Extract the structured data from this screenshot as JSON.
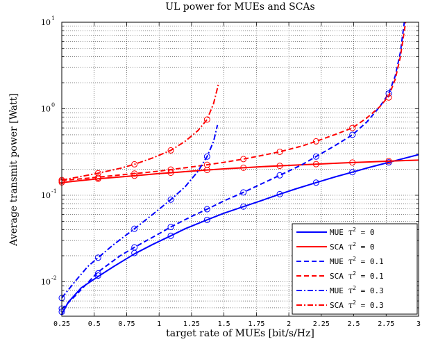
{
  "chart_data": {
    "type": "line",
    "title": "UL power for MUEs and SCAs",
    "xlabel": "target rate of MUEs [bit/s/Hz]",
    "ylabel": "Average transmit power [Watt]",
    "xlim": [
      0.25,
      3
    ],
    "ylim": [
      0.004,
      10
    ],
    "yscale": "log",
    "grid": true,
    "legend_position": "bottom-right",
    "x_ticks": [
      "0.25",
      "0.5",
      "0.75",
      "1",
      "1.25",
      "1.5",
      "1.75",
      "2",
      "2.25",
      "2.5",
      "2.75",
      "3"
    ],
    "x_tick_values": [
      0.25,
      0.5,
      0.75,
      1,
      1.25,
      1.5,
      1.75,
      2,
      2.25,
      2.5,
      2.75,
      3
    ],
    "y_ticks": [
      {
        "value": 0.01,
        "base": "10",
        "exp": "-2"
      },
      {
        "value": 0.1,
        "base": "10",
        "exp": "-1"
      },
      {
        "value": 1,
        "base": "10",
        "exp": "0"
      },
      {
        "value": 10,
        "base": "10",
        "exp": "1"
      }
    ],
    "series": [
      {
        "name": "MUE τ² = 0",
        "legend_prefix": "MUE",
        "legend_value": "= 0",
        "color": "#0000ff",
        "dash": "solid",
        "x": [
          0.25,
          0.3,
          0.4,
          0.53,
          0.65,
          0.81,
          0.95,
          1.09,
          1.2,
          1.37,
          1.5,
          1.65,
          1.8,
          1.93,
          2.05,
          2.21,
          2.35,
          2.49,
          2.62,
          2.77,
          2.9,
          3.0
        ],
        "y": [
          0.0042,
          0.0058,
          0.0085,
          0.0115,
          0.015,
          0.021,
          0.027,
          0.034,
          0.041,
          0.052,
          0.062,
          0.074,
          0.088,
          0.103,
          0.118,
          0.14,
          0.162,
          0.185,
          0.21,
          0.24,
          0.27,
          0.295
        ],
        "markers_x": [
          0.25,
          0.53,
          0.81,
          1.09,
          1.37,
          1.65,
          1.93,
          2.21,
          2.49,
          2.77
        ],
        "markers_y": [
          0.0045,
          0.0118,
          0.0215,
          0.034,
          0.052,
          0.074,
          0.103,
          0.14,
          0.185,
          0.24
        ]
      },
      {
        "name": "SCA τ² = 0",
        "legend_prefix": "SCA",
        "legend_value": "= 0",
        "color": "#ff0000",
        "dash": "solid",
        "x": [
          0.25,
          0.4,
          0.53,
          0.7,
          0.81,
          1.0,
          1.09,
          1.25,
          1.37,
          1.5,
          1.65,
          1.8,
          1.93,
          2.1,
          2.21,
          2.35,
          2.49,
          2.62,
          2.77,
          2.9,
          3.0
        ],
        "y": [
          0.14,
          0.148,
          0.155,
          0.163,
          0.168,
          0.178,
          0.182,
          0.19,
          0.196,
          0.202,
          0.208,
          0.214,
          0.219,
          0.225,
          0.229,
          0.234,
          0.239,
          0.243,
          0.248,
          0.252,
          0.255
        ],
        "markers_x": [
          0.25,
          0.53,
          0.81,
          1.09,
          1.37,
          1.65,
          1.93,
          2.21,
          2.49,
          2.77
        ],
        "markers_y": [
          0.141,
          0.155,
          0.168,
          0.182,
          0.196,
          0.208,
          0.219,
          0.229,
          0.239,
          0.248
        ]
      },
      {
        "name": "MUE τ² = 0.1",
        "legend_prefix": "MUE",
        "legend_value": "= 0.1",
        "color": "#0000ff",
        "dash": "dashed",
        "x": [
          0.25,
          0.35,
          0.53,
          0.7,
          0.81,
          1.0,
          1.09,
          1.25,
          1.37,
          1.5,
          1.65,
          1.8,
          1.93,
          2.1,
          2.21,
          2.35,
          2.49,
          2.6,
          2.7,
          2.77,
          2.82,
          2.86,
          2.89
        ],
        "y": [
          0.0048,
          0.0068,
          0.013,
          0.02,
          0.025,
          0.036,
          0.043,
          0.057,
          0.069,
          0.086,
          0.108,
          0.138,
          0.17,
          0.225,
          0.28,
          0.37,
          0.5,
          0.7,
          1.05,
          1.5,
          2.4,
          4.5,
          10.0
        ],
        "markers_x": [
          0.25,
          0.53,
          0.81,
          1.09,
          1.37,
          1.65,
          1.93,
          2.21,
          2.49,
          2.77
        ],
        "markers_y": [
          0.0049,
          0.0125,
          0.025,
          0.043,
          0.069,
          0.108,
          0.17,
          0.28,
          0.5,
          1.5
        ]
      },
      {
        "name": "SCA τ² = 0.1",
        "legend_prefix": "SCA",
        "legend_value": "= 0.1",
        "color": "#ff0000",
        "dash": "dashed",
        "x": [
          0.25,
          0.4,
          0.53,
          0.7,
          0.81,
          1.0,
          1.09,
          1.25,
          1.37,
          1.5,
          1.65,
          1.8,
          1.93,
          2.1,
          2.21,
          2.35,
          2.49,
          2.6,
          2.7,
          2.77,
          2.82,
          2.86,
          2.9
        ],
        "y": [
          0.148,
          0.155,
          0.162,
          0.172,
          0.178,
          0.19,
          0.198,
          0.212,
          0.225,
          0.24,
          0.262,
          0.29,
          0.318,
          0.37,
          0.42,
          0.5,
          0.6,
          0.78,
          1.05,
          1.4,
          2.2,
          4.0,
          10.0
        ],
        "markers_x": [
          0.25,
          0.53,
          0.81,
          1.09,
          1.37,
          1.65,
          1.93,
          2.21,
          2.49,
          2.77
        ],
        "markers_y": [
          0.146,
          0.16,
          0.178,
          0.198,
          0.225,
          0.262,
          0.318,
          0.42,
          0.6,
          1.35
        ]
      },
      {
        "name": "MUE τ² = 0.3",
        "legend_prefix": "MUE",
        "legend_value": "= 0.3",
        "color": "#0000ff",
        "dash": "dashdot",
        "x": [
          0.25,
          0.35,
          0.45,
          0.53,
          0.65,
          0.81,
          0.95,
          1.09,
          1.2,
          1.3,
          1.37,
          1.42,
          1.45
        ],
        "y": [
          0.0065,
          0.01,
          0.015,
          0.019,
          0.027,
          0.041,
          0.06,
          0.089,
          0.125,
          0.19,
          0.28,
          0.42,
          0.65
        ],
        "markers_x": [
          0.25,
          0.53,
          0.81,
          1.09,
          1.37
        ],
        "markers_y": [
          0.0065,
          0.019,
          0.041,
          0.089,
          0.28
        ]
      },
      {
        "name": "SCA τ² = 0.3",
        "legend_prefix": "SCA",
        "legend_value": "= 0.3",
        "color": "#ff0000",
        "dash": "dashdot",
        "x": [
          0.25,
          0.4,
          0.53,
          0.7,
          0.81,
          0.95,
          1.09,
          1.2,
          1.3,
          1.37,
          1.42,
          1.46
        ],
        "y": [
          0.15,
          0.165,
          0.18,
          0.205,
          0.228,
          0.27,
          0.33,
          0.42,
          0.56,
          0.75,
          1.15,
          2.0
        ],
        "markers_x": [
          0.25,
          0.53,
          0.81,
          1.09,
          1.37
        ],
        "markers_y": [
          0.15,
          0.18,
          0.228,
          0.33,
          0.75
        ]
      }
    ]
  }
}
